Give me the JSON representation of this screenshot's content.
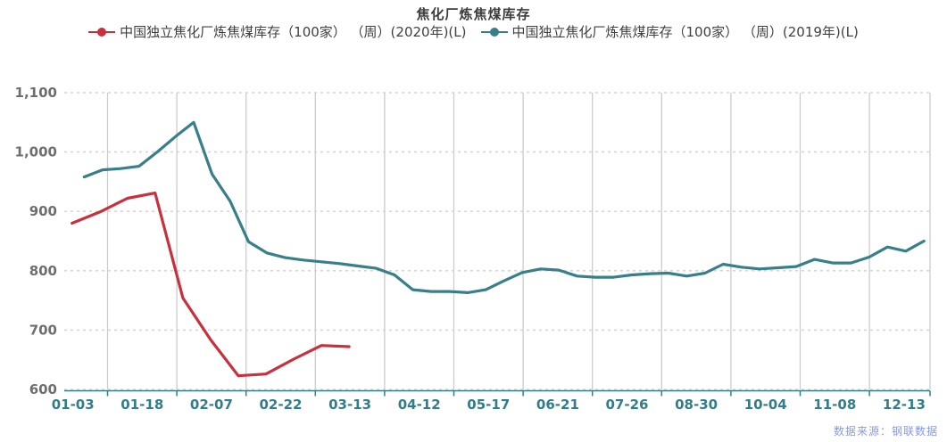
{
  "title": "焦化厂炼焦煤库存",
  "source": "数据来源：钢联数据",
  "legend": [
    {
      "label": "中国独立焦化厂炼焦煤库存（100家） （周）(2020年)(L)",
      "color": "#c9303c"
    },
    {
      "label": "中国独立焦化厂炼焦煤库存（100家） （周）(2019年)(L)",
      "color": "#37808a"
    }
  ],
  "chart_data": {
    "type": "line",
    "title": "焦化厂炼焦煤库存",
    "xlabel": "",
    "ylabel": "",
    "ylim": [
      600,
      1100
    ],
    "grid": "horizontal-dashed, vertical-solid",
    "legend_position": "top",
    "x_tick_labels": [
      "01-03",
      "01-18",
      "02-07",
      "02-22",
      "03-13",
      "04-12",
      "05-17",
      "06-21",
      "07-26",
      "08-30",
      "10-04",
      "11-08",
      "12-13"
    ],
    "x_slot_count": 50,
    "x_label_step": 4,
    "y_ticks": [
      {
        "value": 600,
        "label": "600"
      },
      {
        "value": 700,
        "label": "700"
      },
      {
        "value": 800,
        "label": "800"
      },
      {
        "value": 900,
        "label": "900"
      },
      {
        "value": 1000,
        "label": "1,000"
      },
      {
        "value": 1100,
        "label": "1,100"
      }
    ],
    "series": [
      {
        "name": "中国独立焦化厂炼焦煤库存（100家） （周）(2019年)(L)",
        "color": "#37808a",
        "x_start_frac": 0.023,
        "x_end_frac": 0.993,
        "values": [
          958,
          970,
          972,
          976,
          1000,
          1026,
          1050,
          963,
          917,
          849,
          830,
          822,
          818,
          815,
          812,
          808,
          804,
          793,
          768,
          765,
          765,
          763,
          768,
          783,
          797,
          803,
          801,
          791,
          789,
          789,
          793,
          795,
          796,
          791,
          796,
          811,
          806,
          803,
          805,
          807,
          819,
          813,
          813,
          823,
          840,
          833,
          850
        ]
      },
      {
        "name": "中国独立焦化厂炼焦煤库存（100家） （周）(2020年)(L)",
        "color": "#c9303c",
        "x_start_frac": 0.009,
        "x_end_frac": 0.329,
        "values": [
          880,
          899,
          922,
          931,
          754,
          684,
          623,
          626,
          651,
          674,
          672
        ]
      }
    ]
  },
  "style": {
    "x_label_color": "#2f7e89",
    "y_label_color": "#6e6e6e",
    "axis_color": "#2f7e89",
    "h_grid_color": "#d6d6d6",
    "v_grid_color": "#cccccc"
  }
}
